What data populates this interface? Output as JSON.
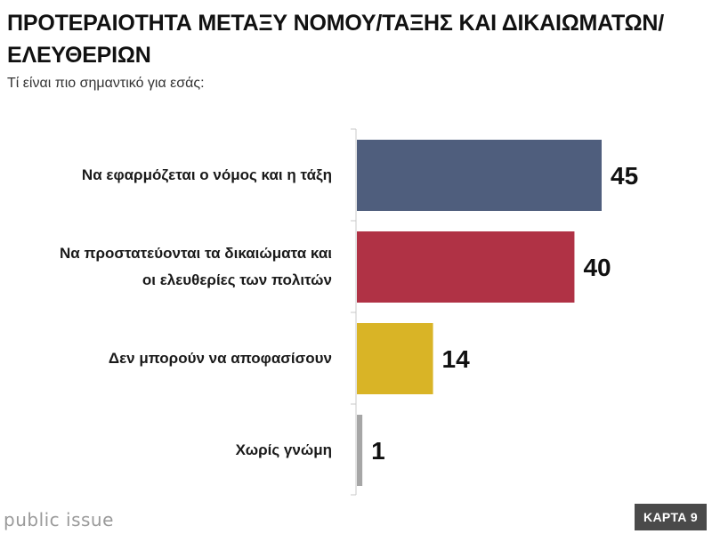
{
  "title": "ΠΡΟΤΕΡΑΙΟΤΗΤΑ ΜΕΤΑΞΥ ΝΟΜΟΥ/ΤΑΞΗΣ ΚΑΙ ΔΙΚΑΙΩΜΑΤΩΝ/ΕΛΕΥΘΕΡΙΩΝ",
  "subtitle": "Τί είναι πιο σημαντικό για εσάς:",
  "logo_text": "public issue",
  "badge": "ΚΑΡΤΑ 9",
  "chart_data": {
    "type": "bar",
    "orientation": "horizontal",
    "categories": [
      "Να εφαρμόζεται ο νόμος και η τάξη",
      "Να προστατεύονται τα δικαιώματα και οι ελευθερίες των πολιτών",
      "Δεν μπορούν να αποφασίσουν",
      "Χωρίς γνώμη"
    ],
    "values": [
      45,
      40,
      14,
      1
    ],
    "colors": [
      "#4f5e7d",
      "#b03245",
      "#d9b426",
      "#a6a6a6"
    ],
    "xlim": [
      0,
      100
    ],
    "grid": false,
    "legend": "none"
  }
}
